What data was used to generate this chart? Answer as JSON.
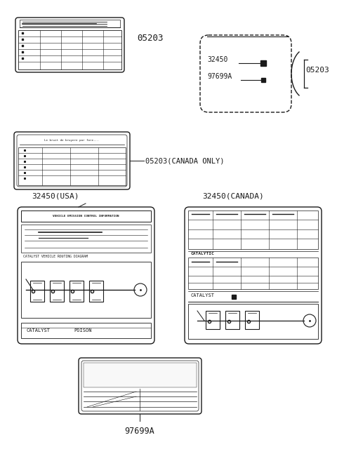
{
  "bg_color": "#ffffff",
  "line_color": "#1a1a1a",
  "labels": {
    "05203_top": "05203",
    "05203_canada": "05203(CANADA ONLY)",
    "05203_right": "05203",
    "32450_usa": "32450(USA)",
    "32450_canada": "32450(CANADA)",
    "97699a_bottom": "97699A",
    "32450_text": "32450",
    "97699a_text": "97699A",
    "catalyst_usa": "CATALYST",
    "poison_usa": "POISON",
    "catalyst_canada": "CATALYST",
    "catalytic_label": "CATALYTIC",
    "veh_emission": "VEHICLE EMISSION CONTROL INFORMATION",
    "cat_routing": "CATALYST VEHICLE ROUTING DIAGRAM"
  }
}
